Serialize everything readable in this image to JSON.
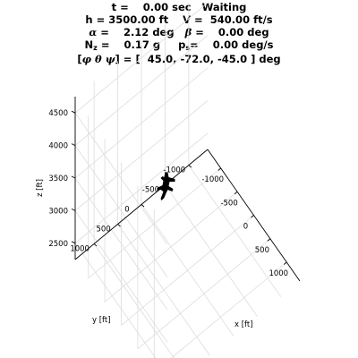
{
  "header": {
    "t_label": "t =",
    "t_value": "0.00 sec",
    "status": "Waiting",
    "h_label": "h =",
    "h_value": "3500.00 ft",
    "V_label": "V =",
    "V_value": "540.00 ft/s",
    "alpha_symbol": "α",
    "alpha_eq": "=",
    "alpha_value": "2.12 deg",
    "beta_symbol": "β",
    "beta_eq": "=",
    "beta_value": "0.00 deg",
    "Nz_base": "N",
    "Nz_sub": "z",
    "Nz_eq": "=",
    "Nz_value": "0.17 g",
    "ps_base": "p",
    "ps_sub": "s",
    "ps_eq": "=",
    "ps_value": "0.00 deg/s",
    "euler_open": "[",
    "euler_symbols": "φ θ ψ",
    "euler_close": "] =",
    "euler_values": "[  45.0, -72.0, -45.0 ] deg"
  },
  "chart_data": {
    "type": "3d-line",
    "xlabel": "x [ft]",
    "ylabel": "y [ft]",
    "zlabel": "z [ft]",
    "xlim": [
      -1400,
      1400
    ],
    "ylim": [
      -1400,
      1400
    ],
    "zlim": [
      2250,
      4750
    ],
    "x_ticks": [
      -1000,
      -500,
      0,
      500,
      1000
    ],
    "x_tick_labels": [
      "-1000",
      "-500",
      "0",
      "500",
      "1000"
    ],
    "y_ticks": [
      -1000,
      -500,
      0,
      500,
      1000
    ],
    "y_tick_labels": [
      "-1000",
      "-500",
      "0",
      "500",
      "1000"
    ],
    "z_ticks": [
      2500,
      3000,
      3500,
      4000,
      4500
    ],
    "z_tick_labels": [
      "2500",
      "3000",
      "3500",
      "4000",
      "4500"
    ],
    "grid": true,
    "aircraft": {
      "x": 0,
      "y": 0,
      "z": 3500,
      "color": "#000000"
    },
    "colors": {
      "grid": "#dcdcdc",
      "axis": "#000000",
      "aircraft": "#000000"
    }
  }
}
